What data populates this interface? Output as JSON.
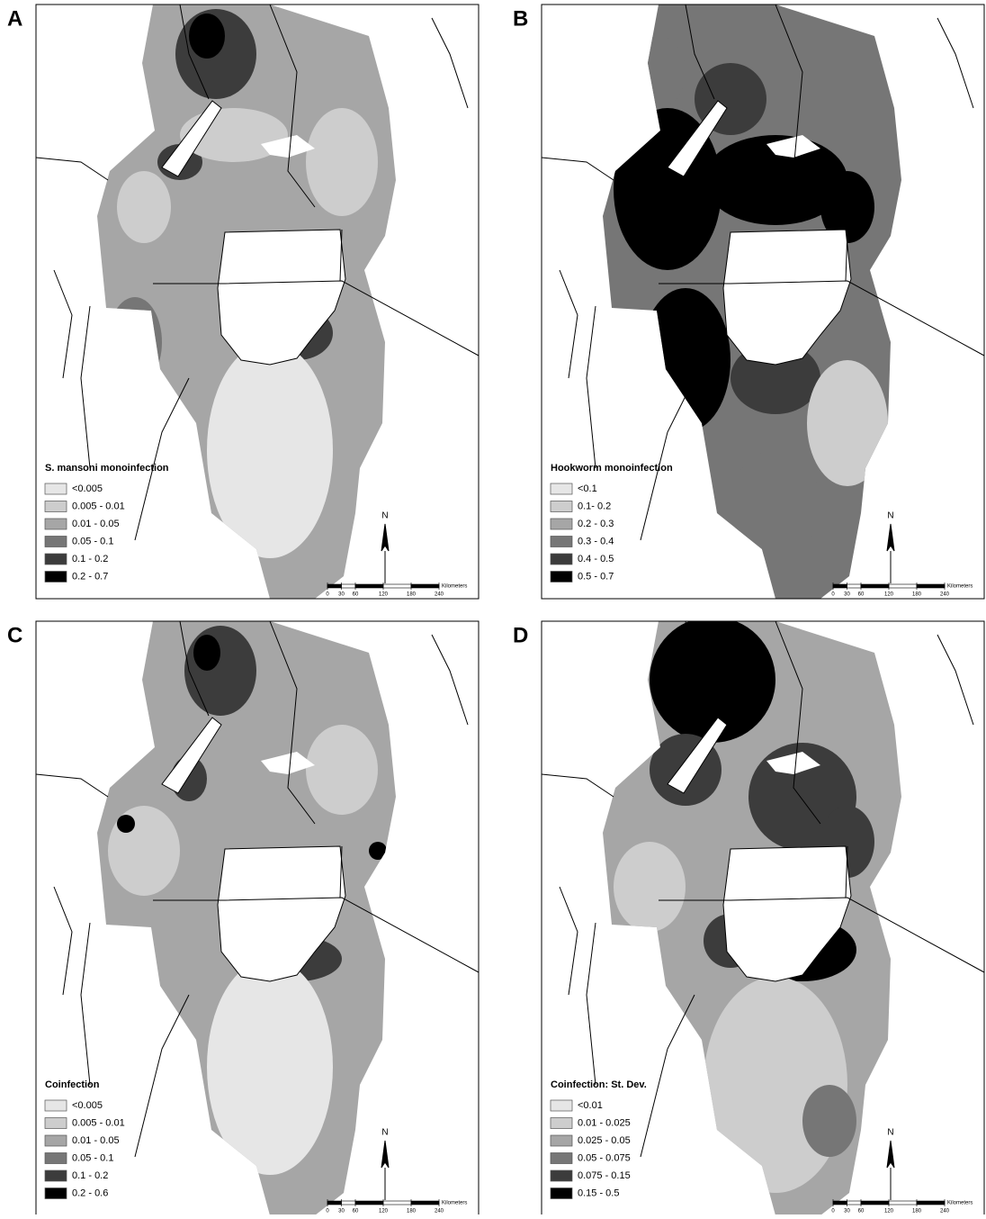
{
  "panels": [
    {
      "letter": "A",
      "legend_title": "S. mansoni monoinfection",
      "legend": [
        {
          "label": "<0.005",
          "color": "#e6e6e6"
        },
        {
          "label": "0.005 - 0.01",
          "color": "#cdcdcd"
        },
        {
          "label": "0.01 - 0.05",
          "color": "#a6a6a6"
        },
        {
          "label": "0.05 - 0.1",
          "color": "#767676"
        },
        {
          "label": "0.1 - 0.2",
          "color": "#3c3c3c"
        },
        {
          "label": "0.2 - 0.7",
          "color": "#000000"
        }
      ],
      "north": "N",
      "scale_ticks": [
        0,
        30,
        60,
        120,
        180,
        240
      ],
      "scale_unit": "Kilometers"
    },
    {
      "letter": "B",
      "legend_title": "Hookworm monoinfection",
      "legend": [
        {
          "label": "<0.1",
          "color": "#e6e6e6"
        },
        {
          "label": "0.1- 0.2",
          "color": "#cdcdcd"
        },
        {
          "label": "0.2 - 0.3",
          "color": "#a6a6a6"
        },
        {
          "label": "0.3 - 0.4",
          "color": "#767676"
        },
        {
          "label": "0.4 - 0.5",
          "color": "#3c3c3c"
        },
        {
          "label": "0.5 - 0.7",
          "color": "#000000"
        }
      ],
      "north": "N",
      "scale_ticks": [
        0,
        30,
        60,
        120,
        180,
        240
      ],
      "scale_unit": "Kilometers"
    },
    {
      "letter": "C",
      "legend_title": "Coinfection",
      "legend": [
        {
          "label": "<0.005",
          "color": "#e6e6e6"
        },
        {
          "label": "0.005 - 0.01",
          "color": "#cdcdcd"
        },
        {
          "label": "0.01 - 0.05",
          "color": "#a6a6a6"
        },
        {
          "label": "0.05 - 0.1",
          "color": "#767676"
        },
        {
          "label": "0.1 - 0.2",
          "color": "#3c3c3c"
        },
        {
          "label": "0.2 - 0.6",
          "color": "#000000"
        }
      ],
      "north": "N",
      "scale_ticks": [
        0,
        30,
        60,
        120,
        180,
        240
      ],
      "scale_unit": "Kilometers"
    },
    {
      "letter": "D",
      "legend_title": "Coinfection: St. Dev.",
      "legend": [
        {
          "label": "<0.01",
          "color": "#e6e6e6"
        },
        {
          "label": "0.01 - 0.025",
          "color": "#cdcdcd"
        },
        {
          "label": "0.025 - 0.05",
          "color": "#a6a6a6"
        },
        {
          "label": "0.05 - 0.075",
          "color": "#767676"
        },
        {
          "label": "0.075 - 0.15",
          "color": "#3c3c3c"
        },
        {
          "label": "0.15 - 0.5",
          "color": "#000000"
        }
      ],
      "north": "N",
      "scale_ticks": [
        0,
        30,
        60,
        120,
        180,
        240
      ],
      "scale_unit": "Kilometers"
    }
  ]
}
